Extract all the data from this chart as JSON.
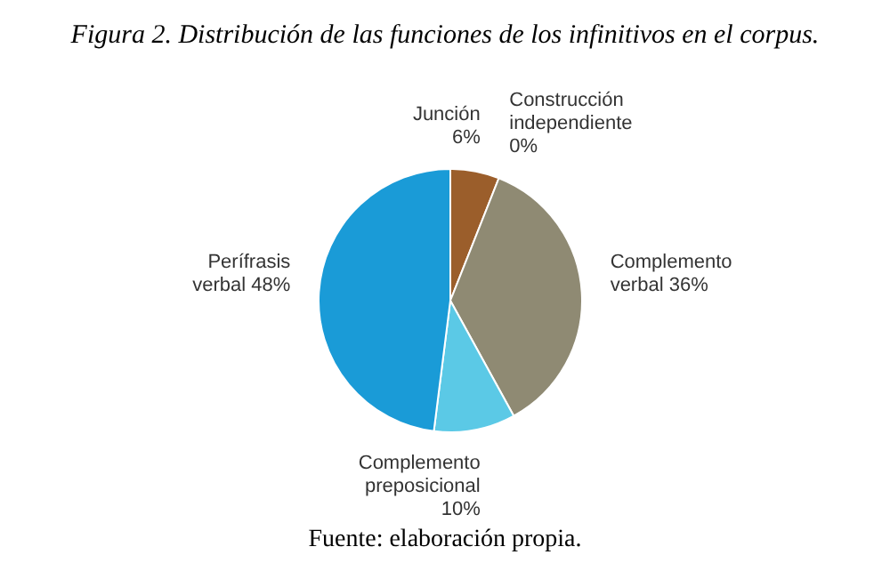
{
  "chart_data": {
    "type": "pie",
    "title": "Figura 2. Distribución de las funciones de los infinitivos en el corpus.",
    "categories": [
      "Junción",
      "Construcción independiente",
      "Complemento verbal",
      "Complemento preposicional",
      "Perífrasis verbal"
    ],
    "values": [
      6,
      0,
      36,
      10,
      48
    ],
    "value_labels": [
      "6%",
      "0%",
      "36%",
      "10%",
      "48%"
    ],
    "colors": [
      "#9b5e2b",
      "#b0b0b0",
      "#8f8a73",
      "#5bc9e6",
      "#1a9bd7"
    ],
    "annotations": [
      "Fuente: elaboración propia."
    ]
  }
}
